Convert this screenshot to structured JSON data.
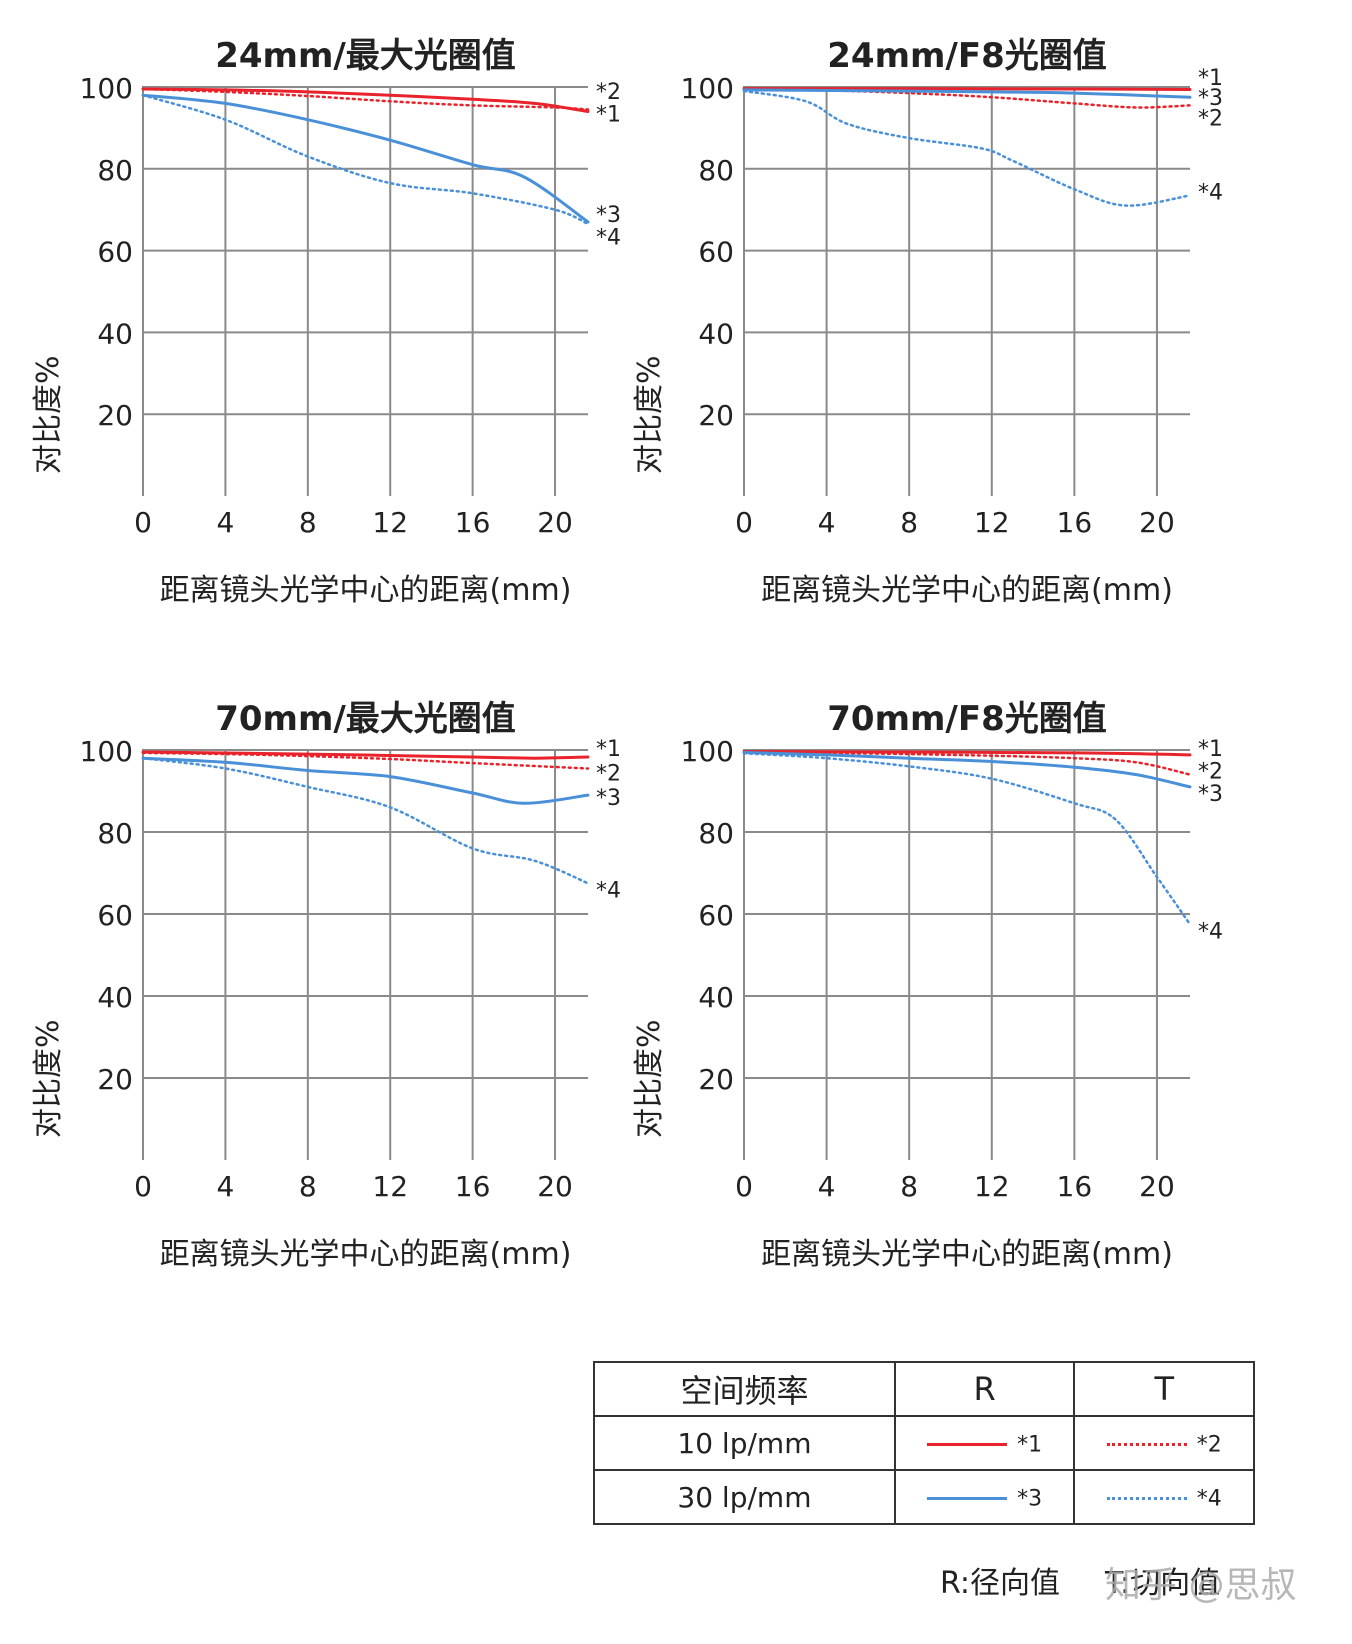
{
  "chart_data": [
    {
      "type": "line",
      "title": "24mm/最大光圈值",
      "xlabel": "距离镜头光学中心的距离(mm)",
      "ylabel": "对比度%",
      "xticks": [
        0,
        4,
        8,
        12,
        16,
        20
      ],
      "yticks": [
        20,
        40,
        60,
        80,
        100
      ],
      "ytick_labels": [
        "20",
        "40",
        "60",
        "80",
        "100"
      ],
      "xlim": [
        0,
        21.6
      ],
      "ylim": [
        0,
        100
      ],
      "grid": true,
      "series": [
        {
          "name": "*1",
          "style": "solid",
          "color": "#e8232b",
          "x": [
            0,
            4,
            8,
            12,
            16,
            19,
            21.6
          ],
          "y": [
            99.5,
            99.3,
            98.8,
            98,
            97,
            96,
            94
          ]
        },
        {
          "name": "*2",
          "style": "dotted",
          "color": "#e8232b",
          "x": [
            0,
            4,
            8,
            12,
            16,
            20,
            21.6
          ],
          "y": [
            99.5,
            98.8,
            97.8,
            96.5,
            95.5,
            95,
            94.5
          ]
        },
        {
          "name": "*3",
          "style": "solid",
          "color": "#4a90d9",
          "x": [
            0,
            4,
            8,
            12,
            16,
            18.5,
            21.6
          ],
          "y": [
            98,
            96,
            92,
            87,
            81,
            78,
            67
          ]
        },
        {
          "name": "*4",
          "style": "dotted",
          "color": "#4a90d9",
          "x": [
            0,
            4,
            8,
            12,
            16,
            20,
            21.6
          ],
          "y": [
            98,
            92,
            83,
            76.5,
            74,
            70,
            66.5
          ]
        }
      ],
      "end_labels": [
        {
          "text": "*2",
          "y": 99
        },
        {
          "text": "*1",
          "y": 93.5
        },
        {
          "text": "*3",
          "y": 69
        },
        {
          "text": "*4",
          "y": 63.5
        }
      ]
    },
    {
      "type": "line",
      "title": "24mm/F8光圈值",
      "xlabel": "距离镜头光学中心的距离(mm)",
      "ylabel": "对比度%",
      "xticks": [
        0,
        4,
        8,
        12,
        16,
        20
      ],
      "yticks": [
        20,
        40,
        60,
        80,
        100
      ],
      "ytick_labels": [
        "20",
        "40",
        "60",
        "80",
        "100"
      ],
      "xlim": [
        0,
        21.6
      ],
      "ylim": [
        0,
        100
      ],
      "grid": true,
      "series": [
        {
          "name": "*1",
          "style": "solid",
          "color": "#e8232b",
          "x": [
            0,
            8,
            16,
            21.6
          ],
          "y": [
            99.6,
            99.6,
            99.5,
            99.4
          ]
        },
        {
          "name": "*2",
          "style": "dotted",
          "color": "#e8232b",
          "x": [
            0,
            4,
            8,
            12,
            16,
            19,
            21.6
          ],
          "y": [
            99.5,
            99.2,
            98.5,
            97.5,
            96,
            95,
            95.5
          ]
        },
        {
          "name": "*3",
          "style": "solid",
          "color": "#4a90d9",
          "x": [
            0,
            8,
            12,
            16,
            21.6
          ],
          "y": [
            99.3,
            99,
            98.8,
            98.5,
            97.5
          ]
        },
        {
          "name": "*4",
          "style": "dotted",
          "color": "#4a90d9",
          "x": [
            0,
            3,
            5,
            8,
            11.5,
            13,
            16,
            18.5,
            21.6
          ],
          "y": [
            99,
            96.5,
            91,
            87.5,
            85,
            82,
            75,
            71,
            73.5
          ]
        }
      ],
      "end_labels": [
        {
          "text": "*1",
          "y": 102.5
        },
        {
          "text": "*3",
          "y": 97.5
        },
        {
          "text": "*2",
          "y": 92.5
        },
        {
          "text": "*4",
          "y": 74.5
        }
      ]
    },
    {
      "type": "line",
      "title": "70mm/最大光圈值",
      "xlabel": "距离镜头光学中心的距离(mm)",
      "ylabel": "对比度%",
      "xticks": [
        0,
        4,
        8,
        12,
        16,
        20
      ],
      "yticks": [
        20,
        40,
        60,
        80,
        100
      ],
      "ytick_labels": [
        "20",
        "40",
        "60",
        "80",
        "100"
      ],
      "xlim": [
        0,
        21.6
      ],
      "ylim": [
        0,
        100
      ],
      "grid": true,
      "series": [
        {
          "name": "*1",
          "style": "solid",
          "color": "#e8232b",
          "x": [
            0,
            8,
            16,
            19,
            21.6
          ],
          "y": [
            99.5,
            99,
            98.3,
            98,
            98.3
          ]
        },
        {
          "name": "*2",
          "style": "dotted",
          "color": "#e8232b",
          "x": [
            0,
            4,
            8,
            12,
            16,
            21.6
          ],
          "y": [
            99.3,
            99,
            98.5,
            97.8,
            96.8,
            95.5
          ]
        },
        {
          "name": "*3",
          "style": "solid",
          "color": "#4a90d9",
          "x": [
            0,
            4,
            8,
            12,
            16,
            18.5,
            21.6
          ],
          "y": [
            98,
            97,
            95,
            93.5,
            89.5,
            87,
            89
          ]
        },
        {
          "name": "*4",
          "style": "dotted",
          "color": "#4a90d9",
          "x": [
            0,
            4,
            8,
            12,
            16,
            19,
            21.6
          ],
          "y": [
            98,
            95.5,
            91,
            86,
            76,
            73,
            67.5
          ]
        }
      ],
      "end_labels": [
        {
          "text": "*1",
          "y": 100.5
        },
        {
          "text": "*2",
          "y": 94.5
        },
        {
          "text": "*3",
          "y": 88.5
        },
        {
          "text": "*4",
          "y": 66
        }
      ]
    },
    {
      "type": "line",
      "title": "70mm/F8光圈值",
      "xlabel": "距离镜头光学中心的距离(mm)",
      "ylabel": "对比度%",
      "xticks": [
        0,
        4,
        8,
        12,
        16,
        20
      ],
      "yticks": [
        20,
        40,
        60,
        80,
        100
      ],
      "ytick_labels": [
        "20",
        "40",
        "60",
        "80",
        "100"
      ],
      "xlim": [
        0,
        21.6
      ],
      "ylim": [
        0,
        100
      ],
      "grid": true,
      "series": [
        {
          "name": "*1",
          "style": "solid",
          "color": "#e8232b",
          "x": [
            0,
            8,
            16,
            20,
            21.6
          ],
          "y": [
            99.6,
            99.5,
            99.3,
            99,
            98.8
          ]
        },
        {
          "name": "*2",
          "style": "dotted",
          "color": "#e8232b",
          "x": [
            0,
            4,
            8,
            12,
            16,
            19,
            21.6
          ],
          "y": [
            99.5,
            99.3,
            99,
            98.6,
            98,
            97,
            94
          ]
        },
        {
          "name": "*3",
          "style": "solid",
          "color": "#4a90d9",
          "x": [
            0,
            4,
            8,
            12,
            16,
            19,
            21.6
          ],
          "y": [
            99.4,
            98.8,
            98,
            97.2,
            95.8,
            94,
            91
          ]
        },
        {
          "name": "*4",
          "style": "dotted",
          "color": "#4a90d9",
          "x": [
            0,
            4,
            8,
            12,
            16,
            18,
            20,
            21.6
          ],
          "y": [
            99.2,
            98,
            96,
            93,
            87,
            83,
            69,
            57.5
          ]
        }
      ],
      "end_labels": [
        {
          "text": "*1",
          "y": 100.5
        },
        {
          "text": "*2",
          "y": 95
        },
        {
          "text": "*3",
          "y": 89.5
        },
        {
          "text": "*4",
          "y": 56
        }
      ]
    }
  ],
  "legend_table": {
    "header": [
      "空间频率",
      "R",
      "T"
    ],
    "rows": [
      {
        "freq": "10 lp/mm",
        "r_mark": "*1",
        "t_mark": "*2",
        "color": "#e8232b"
      },
      {
        "freq": "30 lp/mm",
        "r_mark": "*3",
        "t_mark": "*4",
        "color": "#4a90d9"
      }
    ]
  },
  "notes": {
    "r": "R:径向值",
    "t": "T:切向值"
  },
  "watermark": "知乎 @思叔",
  "colors": {
    "red": "#e8232b",
    "blue": "#4a90d9",
    "grid": "#8a8a8a"
  }
}
